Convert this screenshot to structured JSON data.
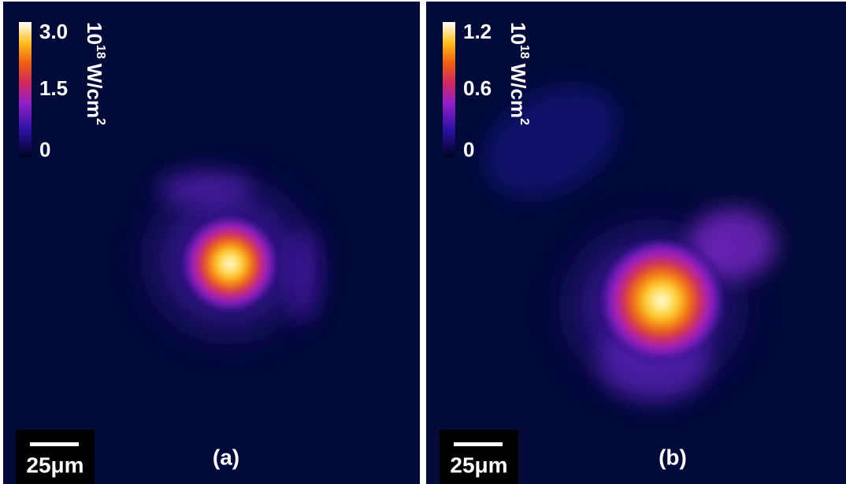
{
  "panels": [
    {
      "label": "(a)",
      "colorbar": {
        "ticks": [
          "3.0",
          "1.5",
          "0"
        ],
        "unit": {
          "base": "10",
          "exp": "18",
          "text": "W/cm",
          "exp2": "2"
        }
      },
      "scale_bar": "25μm"
    },
    {
      "label": "(b)",
      "colorbar": {
        "ticks": [
          "1.2",
          "0.6",
          "0"
        ],
        "unit": {
          "base": "10",
          "exp": "18",
          "text": "W/cm",
          "exp2": "2"
        }
      },
      "scale_bar": "25μm"
    }
  ]
}
